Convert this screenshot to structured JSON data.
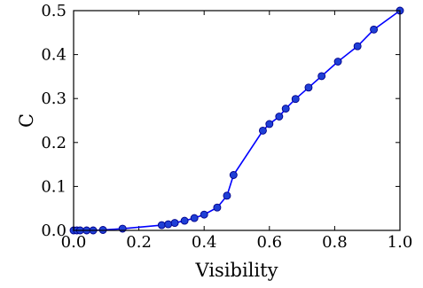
{
  "chart_data": {
    "type": "line",
    "title": "",
    "xlabel": "Visibility",
    "ylabel": "C",
    "xlim": [
      0.0,
      1.0
    ],
    "ylim": [
      0.0,
      0.5
    ],
    "grid": false,
    "legend": "none",
    "x_ticks": [
      "0.0",
      "0.2",
      "0.4",
      "0.6",
      "0.8",
      "1.0"
    ],
    "y_ticks": [
      "0.0",
      "0.1",
      "0.2",
      "0.3",
      "0.4",
      "0.5"
    ],
    "colors": {
      "line": "#0000ff",
      "marker_fill": "#1f3fd6",
      "marker_edge": "#00008b"
    },
    "series": [
      {
        "x": [
          0.0,
          0.01,
          0.02,
          0.04,
          0.06,
          0.09,
          0.15,
          0.27,
          0.29,
          0.31,
          0.34,
          0.37,
          0.4,
          0.44,
          0.47,
          0.49,
          0.58,
          0.6,
          0.63,
          0.65,
          0.68,
          0.72,
          0.76,
          0.81,
          0.87,
          0.92,
          1.0
        ],
        "y": [
          0.0,
          0.0,
          0.0,
          0.0,
          0.0,
          0.001,
          0.004,
          0.012,
          0.014,
          0.017,
          0.022,
          0.028,
          0.036,
          0.052,
          0.079,
          0.126,
          0.227,
          0.242,
          0.259,
          0.277,
          0.299,
          0.325,
          0.351,
          0.384,
          0.419,
          0.457,
          0.5
        ]
      }
    ]
  }
}
